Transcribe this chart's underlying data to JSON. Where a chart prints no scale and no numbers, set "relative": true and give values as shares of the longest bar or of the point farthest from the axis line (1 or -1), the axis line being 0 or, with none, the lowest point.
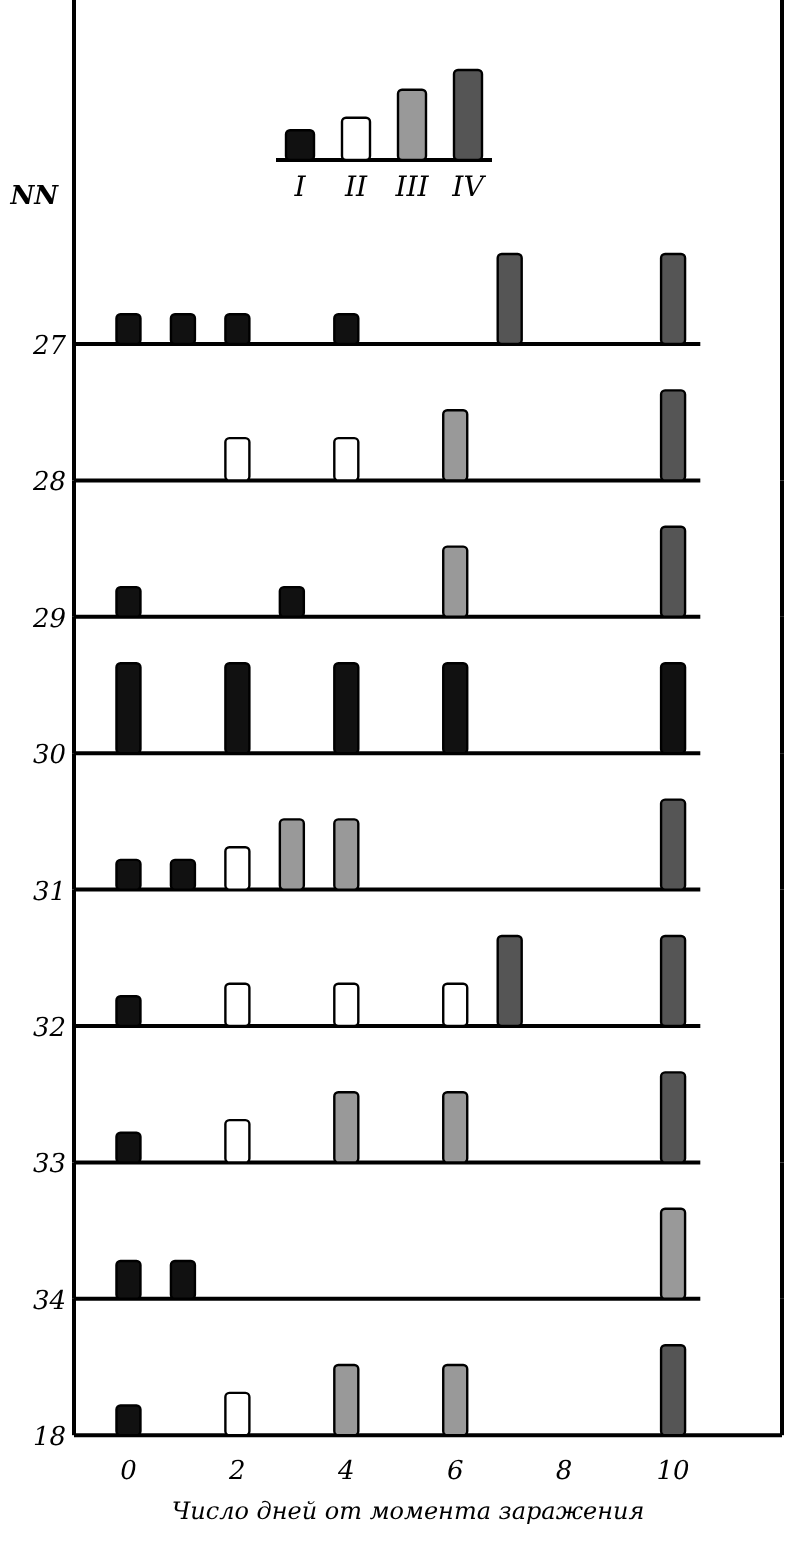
{
  "chart_data": [
    {
      "type": "bar",
      "relative": true,
      "categories": [
        "I",
        "II",
        "III",
        "IV"
      ],
      "values": [
        0.33,
        0.47,
        0.78,
        1
      ],
      "colors": [
        "#111111",
        "#ffffff",
        "#999999",
        "#555555"
      ]
    },
    {
      "type": "bar",
      "title": "27",
      "ylabel": "NN",
      "relative": true,
      "xlim": [
        -1,
        12
      ],
      "tick_labels": false,
      "series": [
        {
          "color": "#111111",
          "x": [
            0,
            1,
            2,
            4
          ],
          "values": [
            0.33,
            0.33,
            0.33,
            0.33
          ]
        },
        {
          "color": "#555555",
          "x": [
            7,
            10
          ],
          "values": [
            1,
            1
          ]
        }
      ]
    },
    {
      "type": "bar",
      "title": "28",
      "relative": true,
      "xlim": [
        -1,
        12
      ],
      "tick_labels": false,
      "series": [
        {
          "color": "#ffffff",
          "x": [
            2,
            4
          ],
          "values": [
            0.47,
            0.47
          ]
        },
        {
          "color": "#999999",
          "x": [
            6
          ],
          "values": [
            0.78
          ]
        },
        {
          "color": "#555555",
          "x": [
            10
          ],
          "values": [
            1
          ]
        }
      ]
    },
    {
      "type": "bar",
      "title": "29",
      "relative": true,
      "xlim": [
        -1,
        12
      ],
      "tick_labels": false,
      "series": [
        {
          "color": "#111111",
          "x": [
            0,
            3
          ],
          "values": [
            0.33,
            0.33
          ]
        },
        {
          "color": "#999999",
          "x": [
            6
          ],
          "values": [
            0.78
          ]
        },
        {
          "color": "#555555",
          "x": [
            10
          ],
          "values": [
            1
          ]
        }
      ]
    },
    {
      "type": "bar",
      "title": "30",
      "relative": true,
      "xlim": [
        -1,
        12
      ],
      "tick_labels": false,
      "series": [
        {
          "color": "#111111",
          "x": [
            0,
            2,
            4,
            6,
            10
          ],
          "values": [
            1,
            1,
            1,
            1,
            1
          ]
        }
      ]
    },
    {
      "type": "bar",
      "title": "31",
      "relative": true,
      "xlim": [
        -1,
        12
      ],
      "tick_labels": false,
      "series": [
        {
          "color": "#111111",
          "x": [
            0,
            1
          ],
          "values": [
            0.33,
            0.33
          ]
        },
        {
          "color": "#ffffff",
          "x": [
            2
          ],
          "values": [
            0.47
          ]
        },
        {
          "color": "#999999",
          "x": [
            3,
            4
          ],
          "values": [
            0.78,
            0.78
          ]
        },
        {
          "color": "#555555",
          "x": [
            10
          ],
          "values": [
            1
          ]
        }
      ]
    },
    {
      "type": "bar",
      "title": "32",
      "relative": true,
      "xlim": [
        -1,
        12
      ],
      "tick_labels": false,
      "series": [
        {
          "color": "#111111",
          "x": [
            0
          ],
          "values": [
            0.33
          ]
        },
        {
          "color": "#ffffff",
          "x": [
            2,
            4,
            6
          ],
          "values": [
            0.47,
            0.47,
            0.47
          ]
        },
        {
          "color": "#555555",
          "x": [
            7,
            10
          ],
          "values": [
            1,
            1
          ]
        }
      ]
    },
    {
      "type": "bar",
      "title": "33",
      "relative": true,
      "xlim": [
        -1,
        12
      ],
      "tick_labels": false,
      "series": [
        {
          "color": "#111111",
          "x": [
            0
          ],
          "values": [
            0.33
          ]
        },
        {
          "color": "#ffffff",
          "x": [
            2
          ],
          "values": [
            0.47
          ]
        },
        {
          "color": "#999999",
          "x": [
            4,
            6
          ],
          "values": [
            0.78,
            0.78
          ]
        },
        {
          "color": "#555555",
          "x": [
            10
          ],
          "values": [
            1
          ]
        }
      ]
    },
    {
      "type": "bar",
      "title": "34",
      "relative": true,
      "xlim": [
        -1,
        12
      ],
      "tick_labels": false,
      "series": [
        {
          "color": "#111111",
          "x": [
            0,
            1
          ],
          "values": [
            0.42,
            0.42
          ]
        },
        {
          "color": "#999999",
          "x": [
            10
          ],
          "values": [
            1
          ]
        }
      ]
    },
    {
      "type": "bar",
      "title": "18",
      "relative": true,
      "xlim": [
        -1,
        12
      ],
      "tick_labels": "x",
      "xticks": [
        0,
        2,
        4,
        6,
        8,
        10
      ],
      "xlabel": "Число дней от момента заражения",
      "series": [
        {
          "color": "#111111",
          "x": [
            0
          ],
          "values": [
            0.33
          ]
        },
        {
          "color": "#ffffff",
          "x": [
            2
          ],
          "values": [
            0.47
          ]
        },
        {
          "color": "#999999",
          "x": [
            4,
            6
          ],
          "values": [
            0.78,
            0.78
          ]
        },
        {
          "color": "#555555",
          "x": [
            10
          ],
          "values": [
            1
          ]
        }
      ]
    }
  ]
}
